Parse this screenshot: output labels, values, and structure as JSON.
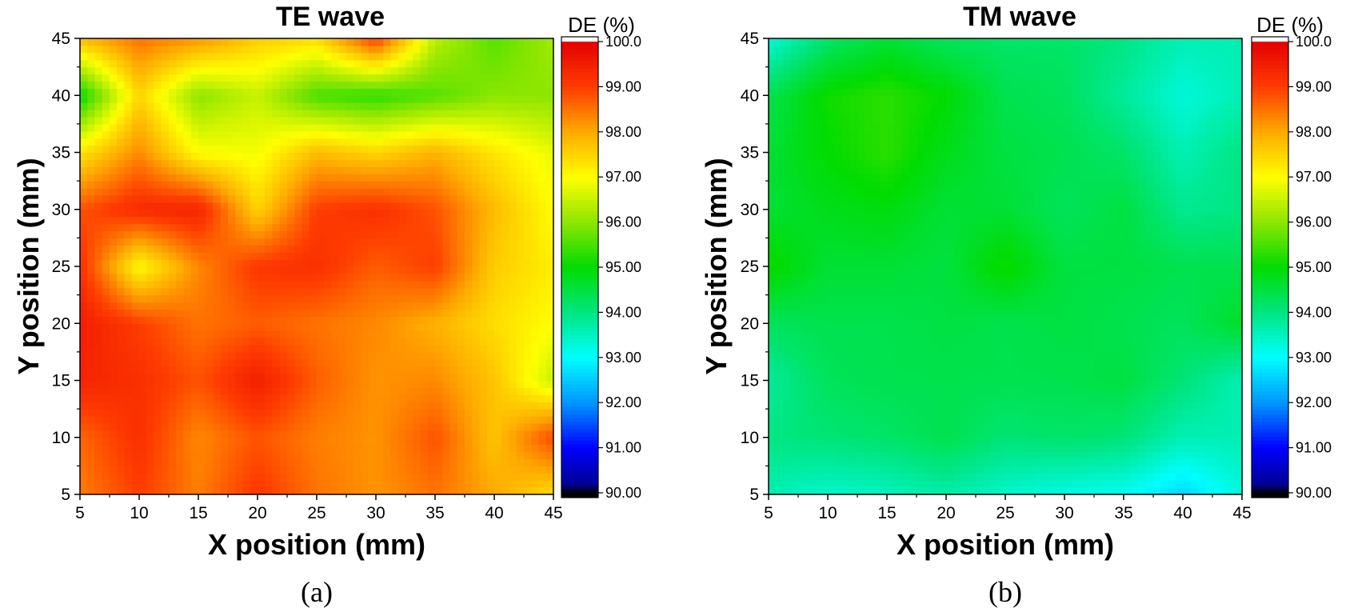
{
  "chart_data": [
    {
      "type": "heatmap",
      "panel_id": "a",
      "title": "TE wave",
      "xlabel": "X position (mm)",
      "ylabel": "Y position (mm)",
      "caption": "(a)",
      "x": [
        5,
        10,
        15,
        20,
        25,
        30,
        35,
        40,
        45
      ],
      "y": [
        5,
        10,
        15,
        20,
        25,
        30,
        35,
        40,
        45
      ],
      "xlim": [
        5,
        45
      ],
      "ylim": [
        5,
        45
      ],
      "xticks": [
        "5",
        "10",
        "15",
        "20",
        "25",
        "30",
        "35",
        "40",
        "45"
      ],
      "yticks": [
        "5",
        "10",
        "15",
        "20",
        "25",
        "30",
        "35",
        "40",
        "45"
      ],
      "values": [
        [
          98.4,
          99.0,
          98.4,
          99.1,
          98.5,
          98.2,
          98.5,
          98.0,
          97.4
        ],
        [
          98.6,
          99.2,
          98.3,
          98.8,
          98.4,
          98.2,
          98.8,
          97.7,
          98.9
        ],
        [
          99.4,
          99.2,
          98.8,
          99.5,
          98.7,
          98.2,
          98.3,
          97.7,
          96.5
        ],
        [
          99.5,
          99.0,
          98.5,
          98.7,
          98.5,
          98.3,
          97.9,
          97.4,
          97.0
        ],
        [
          99.2,
          97.0,
          98.3,
          99.1,
          99.2,
          98.7,
          99.0,
          97.6,
          97.2
        ],
        [
          98.8,
          99.3,
          99.4,
          97.5,
          99.0,
          99.2,
          98.8,
          97.8,
          97.0
        ],
        [
          97.3,
          98.3,
          97.0,
          96.9,
          97.8,
          97.5,
          97.9,
          97.3,
          96.8
        ],
        [
          95.0,
          97.5,
          96.0,
          96.5,
          95.5,
          95.3,
          95.6,
          96.0,
          96.0
        ],
        [
          97.8,
          98.5,
          98.2,
          97.6,
          97.4,
          99.0,
          96.4,
          95.6,
          96.2
        ]
      ],
      "colorbar": {
        "title": "DE (%)",
        "range": [
          90,
          100
        ],
        "ticks": [
          "90.00",
          "91.00",
          "92.00",
          "93.00",
          "94.00",
          "95.00",
          "96.00",
          "97.00",
          "98.00",
          "99.00",
          "100.0"
        ]
      },
      "grid": false
    },
    {
      "type": "heatmap",
      "panel_id": "b",
      "title": "TM wave",
      "xlabel": "X position (mm)",
      "ylabel": "Y position (mm)",
      "caption": "(b)",
      "x": [
        5,
        10,
        15,
        20,
        25,
        30,
        35,
        40,
        45
      ],
      "y": [
        5,
        10,
        15,
        20,
        25,
        30,
        35,
        40,
        45
      ],
      "xlim": [
        5,
        45
      ],
      "ylim": [
        5,
        45
      ],
      "xticks": [
        "5",
        "10",
        "15",
        "20",
        "25",
        "30",
        "35",
        "40",
        "45"
      ],
      "yticks": [
        "5",
        "10",
        "15",
        "20",
        "25",
        "30",
        "35",
        "40",
        "45"
      ],
      "values": [
        [
          93.6,
          93.4,
          93.5,
          93.7,
          93.4,
          93.2,
          93.1,
          92.6,
          93.3
        ],
        [
          94.0,
          94.1,
          94.2,
          94.4,
          94.1,
          94.2,
          94.1,
          93.6,
          93.6
        ],
        [
          93.8,
          94.3,
          94.4,
          94.4,
          94.4,
          94.4,
          94.5,
          94.1,
          93.6
        ],
        [
          94.3,
          94.4,
          94.4,
          94.5,
          94.4,
          94.5,
          94.4,
          94.3,
          94.7
        ],
        [
          95.1,
          94.6,
          94.6,
          94.5,
          95.1,
          94.5,
          94.5,
          94.4,
          94.4
        ],
        [
          94.6,
          94.8,
          94.9,
          94.6,
          94.6,
          94.3,
          94.5,
          93.9,
          94.0
        ],
        [
          94.6,
          95.0,
          95.3,
          94.8,
          94.5,
          94.4,
          94.2,
          93.6,
          94.0
        ],
        [
          94.4,
          95.1,
          95.3,
          95.0,
          94.4,
          94.3,
          93.8,
          93.3,
          93.6
        ],
        [
          93.3,
          94.2,
          94.6,
          94.3,
          94.2,
          94.2,
          94.0,
          93.6,
          93.6
        ]
      ],
      "colorbar": {
        "title": "DE (%)",
        "range": [
          90,
          100
        ],
        "ticks": [
          "90.00",
          "91.00",
          "92.00",
          "93.00",
          "94.00",
          "95.00",
          "96.00",
          "97.00",
          "98.00",
          "99.00",
          "100.0"
        ]
      },
      "grid": false
    }
  ]
}
